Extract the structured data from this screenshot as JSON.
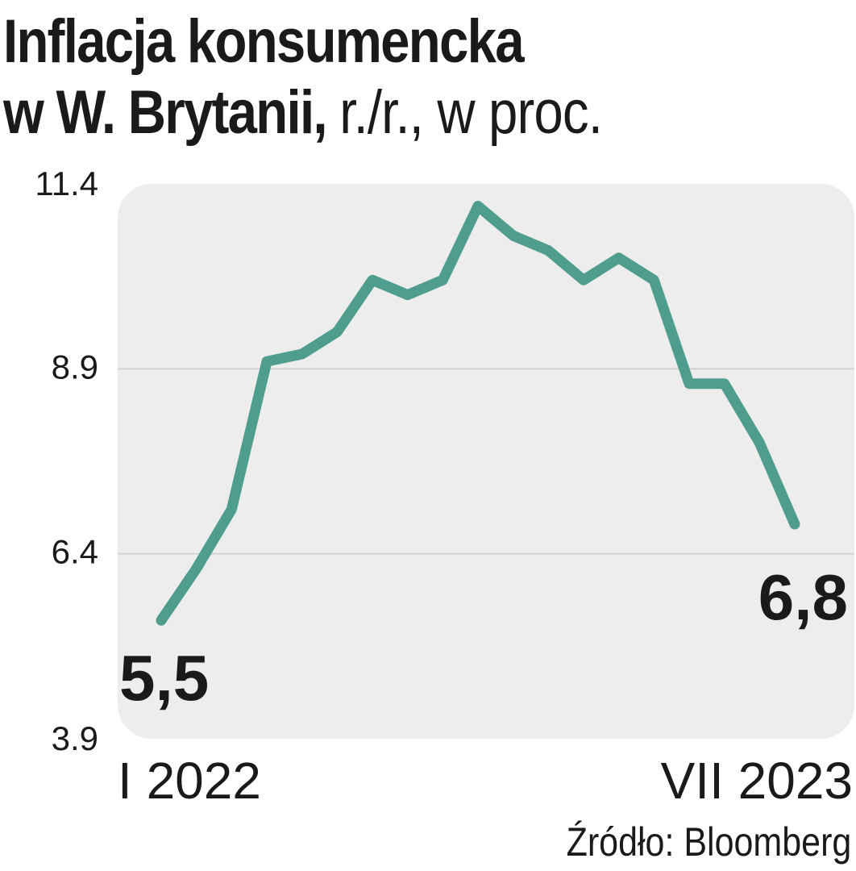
{
  "title": "Inflacja konsumencka",
  "title_line2": "w W. Brytanii,",
  "subtitle": "r./r., w proc.",
  "source": "Źródło: Bloomberg",
  "colors": {
    "line": "#4f9e8d",
    "plot_background": "#ededed",
    "gridline": "#d2d2d2",
    "text": "#1a1a1a"
  },
  "chart_data": {
    "type": "line",
    "ylim": [
      3.9,
      11.4
    ],
    "yticks": [
      "11.4",
      "8.9",
      "6.4",
      "3.9"
    ],
    "ytick_values": [
      11.4,
      8.9,
      6.4,
      3.9
    ],
    "xtick_labels": [
      "I 2022",
      "VII 2023"
    ],
    "grid": true,
    "start_label": "5,5",
    "end_label": "6,8",
    "series": [
      {
        "values": [
          5.5,
          6.2,
          7.0,
          9.0,
          9.1,
          9.4,
          10.1,
          9.9,
          10.1,
          11.1,
          10.7,
          10.5,
          10.1,
          10.4,
          10.1,
          8.7,
          8.7,
          7.9,
          6.8
        ]
      }
    ]
  }
}
